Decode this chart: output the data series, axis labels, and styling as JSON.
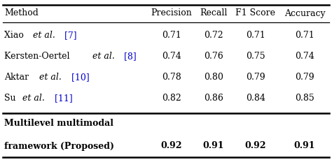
{
  "columns": [
    "Method",
    "Precision",
    "Recall",
    "F1 Score",
    "Accuracy"
  ],
  "rows": [
    {
      "method_plain": "Xiao ",
      "method_italic": "et al.",
      "method_blue": " [7]",
      "values": [
        "0.71",
        "0.72",
        "0.71",
        "0.71"
      ]
    },
    {
      "method_plain": "Kersten-Oertel ",
      "method_italic": "et al.",
      "method_blue": " [8]",
      "values": [
        "0.74",
        "0.76",
        "0.75",
        "0.74"
      ]
    },
    {
      "method_plain": "Aktar ",
      "method_italic": "et al.",
      "method_blue": " [10]",
      "values": [
        "0.78",
        "0.80",
        "0.79",
        "0.79"
      ]
    },
    {
      "method_plain": "Su ",
      "method_italic": "et al.",
      "method_blue": " [11]",
      "values": [
        "0.82",
        "0.86",
        "0.84",
        "0.85"
      ]
    }
  ],
  "proposed_line1": "Multilevel multimodal",
  "proposed_line2": "framework (Proposed)",
  "proposed_values": [
    "0.92",
    "0.91",
    "0.92",
    "0.91"
  ],
  "bg_color": "#ffffff",
  "text_color": "#000000",
  "blue_color": "#0000cd",
  "fontsize": 9.0
}
